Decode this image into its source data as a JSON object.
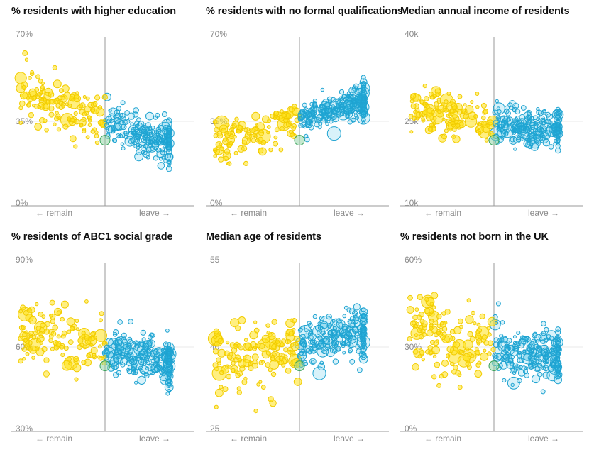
{
  "chart_data": [
    {
      "type": "scatter",
      "title": "% residents with higher education",
      "ytick_labels": [
        "70%",
        "35%",
        "0%"
      ],
      "ylim": [
        0,
        70
      ],
      "xlabel_left": "← remain",
      "xlabel_right": "leave →",
      "seed": 11,
      "shape": {
        "slope": -0.62,
        "noise": 5.5,
        "curve": 0.12
      },
      "anchor_center": 25
    },
    {
      "type": "scatter",
      "title": "% residents with no formal qualifications",
      "ytick_labels": [
        "70%",
        "35%",
        "0%"
      ],
      "ylim": [
        0,
        70
      ],
      "xlabel_left": "← remain",
      "xlabel_right": "leave →",
      "seed": 23,
      "shape": {
        "slope": 0.55,
        "noise": 4.5,
        "curve": -0.05
      },
      "anchor_center": 22
    },
    {
      "type": "scatter",
      "title": "Median annual income of residents",
      "ytick_labels": [
        "40k",
        "25k",
        "10k"
      ],
      "ylim": [
        10000,
        40000
      ],
      "xlabel_left": "← remain",
      "xlabel_right": "leave →",
      "seed": 37,
      "shape": {
        "slope": -0.25,
        "noise": 5.0,
        "curve": 0.05
      },
      "anchor_center": 22000
    },
    {
      "type": "scatter",
      "title": "% residents of ABC1 social grade",
      "ytick_labels": [
        "90%",
        "60%",
        "30%"
      ],
      "ylim": [
        30,
        90
      ],
      "xlabel_left": "← remain",
      "xlabel_right": "leave →",
      "seed": 51,
      "shape": {
        "slope": -0.45,
        "noise": 7.0,
        "curve": 0.0
      },
      "anchor_center": 46
    },
    {
      "type": "scatter",
      "title": "Median age of residents",
      "ytick_labels": [
        "55",
        "40",
        "25"
      ],
      "ylim": [
        25,
        55
      ],
      "xlabel_left": "← remain",
      "xlabel_right": "leave →",
      "seed": 67,
      "shape": {
        "slope": 0.38,
        "noise": 7.0,
        "curve": -0.05
      },
      "anchor_center": 33
    },
    {
      "type": "scatter",
      "title": "% residents not born in the UK",
      "ytick_labels": [
        "60%",
        "30%",
        "0%"
      ],
      "ylim": [
        0,
        60
      ],
      "xlabel_left": "← remain",
      "xlabel_right": "leave →",
      "seed": 83,
      "shape": {
        "slope": -0.35,
        "noise": 8.0,
        "curve": 0.25
      },
      "anchor_center": 20
    }
  ],
  "colors": {
    "remain": "#ffe11a",
    "remain_stroke": "#f2cc00",
    "leave": "#29b8e5",
    "leave_stroke": "#1fa3d1",
    "middle": "#8cd1a0",
    "middle_stroke": "#3aa25a",
    "axis": "#999999",
    "grid": "#e8e8e8"
  }
}
